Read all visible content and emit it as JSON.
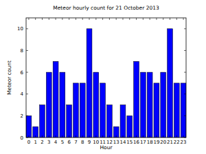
{
  "chart_data": {
    "type": "bar",
    "title": "Meteor hourly count for 21 October 2013",
    "x_label": "Hour",
    "y_label": "Meteor count",
    "categories": [
      "0",
      "1",
      "2",
      "3",
      "4",
      "5",
      "6",
      "7",
      "8",
      "9",
      "10",
      "11",
      "12",
      "13",
      "14",
      "15",
      "16",
      "17",
      "18",
      "19",
      "20",
      "21",
      "22",
      "23"
    ],
    "values": [
      2,
      1,
      3,
      6,
      7,
      6,
      3,
      5,
      5,
      10,
      6,
      5,
      3,
      1,
      3,
      2,
      7,
      6,
      6,
      5,
      6,
      10,
      5,
      5
    ],
    "color": "#0000ff",
    "ylim": [
      0,
      11
    ],
    "yticks": [
      0,
      2,
      4,
      6,
      8,
      10
    ],
    "grid": false
  }
}
